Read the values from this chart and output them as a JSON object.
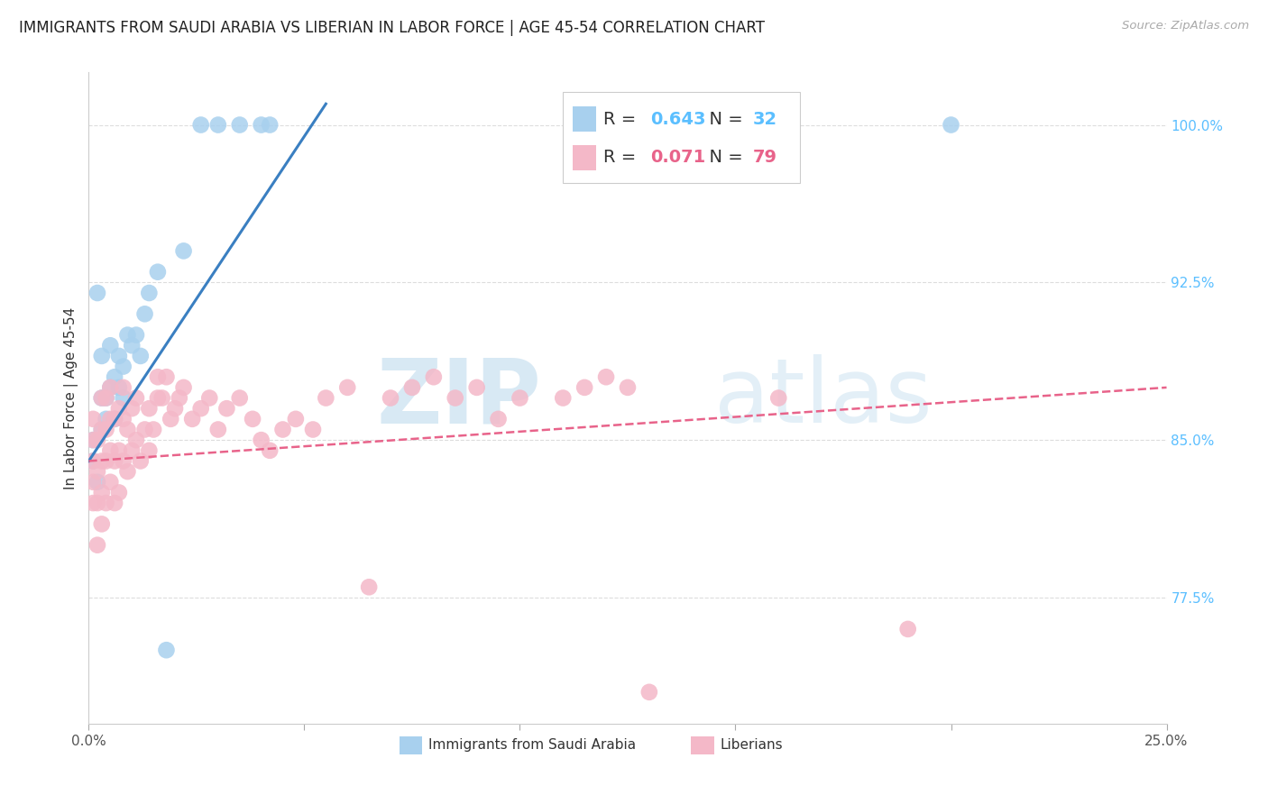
{
  "title": "IMMIGRANTS FROM SAUDI ARABIA VS LIBERIAN IN LABOR FORCE | AGE 45-54 CORRELATION CHART",
  "source": "Source: ZipAtlas.com",
  "ylabel": "In Labor Force | Age 45-54",
  "ylabel_right_ticks": [
    "100.0%",
    "92.5%",
    "85.0%",
    "77.5%"
  ],
  "ylabel_right_tick_vals": [
    1.0,
    0.925,
    0.85,
    0.775
  ],
  "x_min": 0.0,
  "x_max": 0.25,
  "y_min": 0.715,
  "y_max": 1.025,
  "saudi_R": 0.643,
  "saudi_N": 32,
  "liberian_R": 0.071,
  "liberian_N": 79,
  "saudi_color": "#a8d0ee",
  "liberian_color": "#f4b8c8",
  "saudi_line_color": "#3a7fc1",
  "liberian_line_color": "#e8638a",
  "background_color": "#ffffff",
  "grid_color": "#dddddd",
  "watermark_color": "#c8e0f0",
  "title_fontsize": 12,
  "axis_label_fontsize": 11,
  "tick_fontsize": 11,
  "legend_fontsize": 13,
  "saudi_x": [
    0.001,
    0.001,
    0.002,
    0.002,
    0.003,
    0.003,
    0.003,
    0.004,
    0.004,
    0.005,
    0.005,
    0.006,
    0.006,
    0.007,
    0.007,
    0.008,
    0.008,
    0.009,
    0.01,
    0.011,
    0.012,
    0.013,
    0.014,
    0.016,
    0.018,
    0.022,
    0.026,
    0.03,
    0.035,
    0.04,
    0.042,
    0.2
  ],
  "saudi_y": [
    0.84,
    0.85,
    0.83,
    0.92,
    0.855,
    0.87,
    0.89,
    0.86,
    0.87,
    0.875,
    0.895,
    0.86,
    0.88,
    0.875,
    0.89,
    0.87,
    0.885,
    0.9,
    0.895,
    0.9,
    0.89,
    0.91,
    0.92,
    0.93,
    0.75,
    0.94,
    1.0,
    1.0,
    1.0,
    1.0,
    1.0,
    1.0
  ],
  "liberian_x": [
    0.001,
    0.001,
    0.001,
    0.001,
    0.001,
    0.002,
    0.002,
    0.002,
    0.002,
    0.003,
    0.003,
    0.003,
    0.003,
    0.003,
    0.004,
    0.004,
    0.004,
    0.004,
    0.005,
    0.005,
    0.005,
    0.005,
    0.006,
    0.006,
    0.006,
    0.007,
    0.007,
    0.007,
    0.008,
    0.008,
    0.008,
    0.009,
    0.009,
    0.01,
    0.01,
    0.011,
    0.011,
    0.012,
    0.013,
    0.014,
    0.014,
    0.015,
    0.016,
    0.016,
    0.017,
    0.018,
    0.019,
    0.02,
    0.021,
    0.022,
    0.024,
    0.026,
    0.028,
    0.03,
    0.032,
    0.035,
    0.038,
    0.04,
    0.042,
    0.045,
    0.048,
    0.052,
    0.055,
    0.06,
    0.065,
    0.07,
    0.075,
    0.08,
    0.085,
    0.09,
    0.095,
    0.1,
    0.11,
    0.115,
    0.12,
    0.125,
    0.13,
    0.16,
    0.19
  ],
  "liberian_y": [
    0.82,
    0.83,
    0.84,
    0.85,
    0.86,
    0.8,
    0.82,
    0.835,
    0.85,
    0.81,
    0.825,
    0.84,
    0.855,
    0.87,
    0.82,
    0.84,
    0.855,
    0.87,
    0.83,
    0.845,
    0.86,
    0.875,
    0.82,
    0.84,
    0.86,
    0.825,
    0.845,
    0.865,
    0.84,
    0.86,
    0.875,
    0.835,
    0.855,
    0.845,
    0.865,
    0.85,
    0.87,
    0.84,
    0.855,
    0.845,
    0.865,
    0.855,
    0.87,
    0.88,
    0.87,
    0.88,
    0.86,
    0.865,
    0.87,
    0.875,
    0.86,
    0.865,
    0.87,
    0.855,
    0.865,
    0.87,
    0.86,
    0.85,
    0.845,
    0.855,
    0.86,
    0.855,
    0.87,
    0.875,
    0.78,
    0.87,
    0.875,
    0.88,
    0.87,
    0.875,
    0.86,
    0.87,
    0.87,
    0.875,
    0.88,
    0.875,
    0.73,
    0.87,
    0.76
  ],
  "saudi_line_x": [
    0.0,
    0.055
  ],
  "saudi_line_y": [
    0.84,
    1.01
  ],
  "liberian_line_x": [
    0.0,
    0.25
  ],
  "liberian_line_y": [
    0.84,
    0.875
  ]
}
